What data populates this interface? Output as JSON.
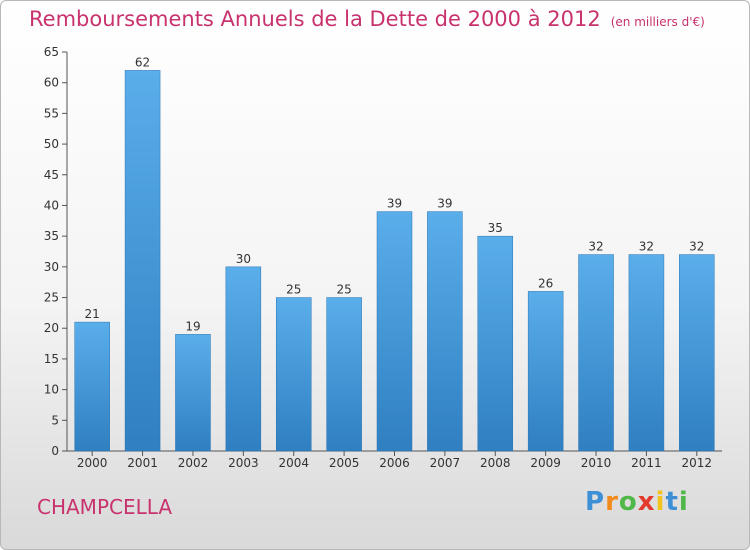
{
  "chart_data": {
    "type": "bar",
    "title": "Remboursements Annuels de la Dette de 2000 à 2012",
    "subtitle": "(en milliers d'€)",
    "categories": [
      "2000",
      "2001",
      "2002",
      "2003",
      "2004",
      "2005",
      "2006",
      "2007",
      "2008",
      "2009",
      "2010",
      "2011",
      "2012"
    ],
    "values": [
      21,
      62,
      19,
      30,
      25,
      25,
      39,
      39,
      35,
      26,
      32,
      32,
      32
    ],
    "ylim": [
      0,
      65
    ],
    "yticks": [
      0,
      5,
      10,
      15,
      20,
      25,
      30,
      35,
      40,
      45,
      50,
      55,
      60,
      65
    ],
    "grid": false,
    "bar_color": "#4a9fe0"
  },
  "commune": "CHAMPCELLA",
  "logo": {
    "letters": [
      "P",
      "r",
      "o",
      "x",
      "i",
      "t",
      "i"
    ],
    "colors": [
      "#3d8fd6",
      "#f28a1d",
      "#4fb848",
      "#e23b2e",
      "#f2c21d",
      "#3d8fd6",
      "#4fb848"
    ]
  }
}
